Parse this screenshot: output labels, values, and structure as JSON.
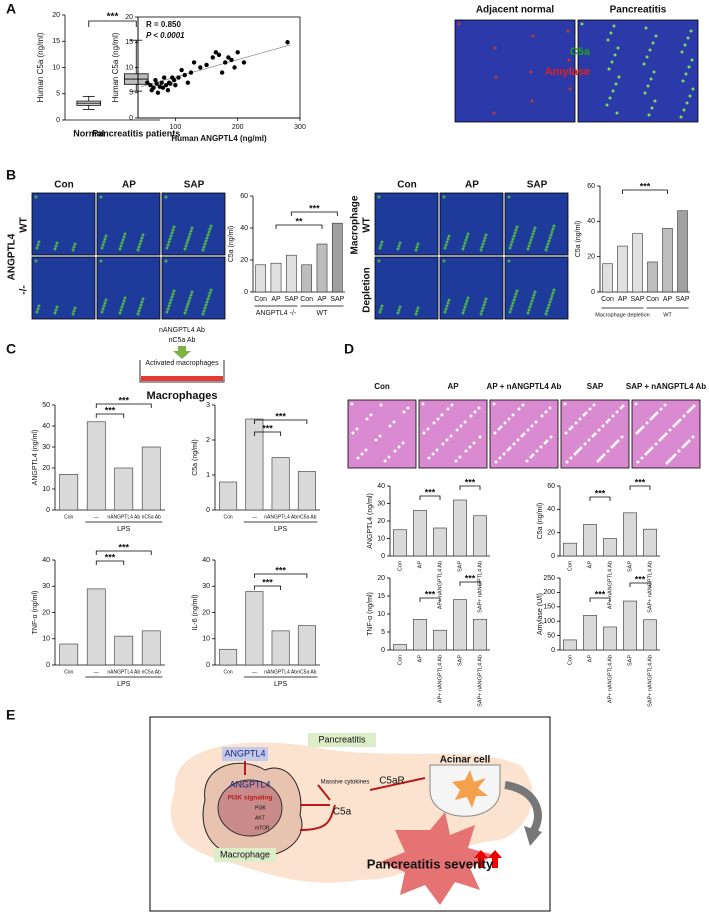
{
  "panels": [
    "A",
    "B",
    "C",
    "D",
    "E"
  ],
  "chart_data": [
    {
      "type": "box",
      "ylabel": "Human C5a (ng/ml)",
      "categories": [
        "Normal",
        "Pancreatitis patients"
      ],
      "boxes": [
        {
          "min": 2,
          "q1": 2.8,
          "median": 3.2,
          "q3": 3.6,
          "max": 4.5
        },
        {
          "min": 5.5,
          "q1": 6.8,
          "median": 7.8,
          "q3": 8.8,
          "max": 15.2
        }
      ],
      "ylim": [
        0,
        20
      ],
      "yticks": [
        0,
        5,
        10,
        15,
        20
      ],
      "significance": [
        "***"
      ]
    },
    {
      "type": "scatter",
      "xlabel": "Human ANGPTL4 (ng/ml)",
      "ylabel": "Human C5a (ng/ml)",
      "annotations": [
        "R = 0.850",
        "P < 0.0001"
      ],
      "x": [
        55,
        60,
        62,
        65,
        68,
        70,
        72,
        75,
        78,
        80,
        82,
        85,
        88,
        90,
        92,
        95,
        98,
        100,
        105,
        110,
        115,
        120,
        125,
        130,
        140,
        150,
        160,
        165,
        170,
        175,
        180,
        185,
        190,
        195,
        200,
        210,
        280
      ],
      "y": [
        7,
        6.5,
        5.5,
        6,
        7.5,
        6.8,
        5,
        6.2,
        7,
        6,
        8,
        6.5,
        5.5,
        7,
        6.8,
        8,
        7.5,
        6.5,
        8,
        9.5,
        8.5,
        7,
        9,
        11,
        10,
        10.5,
        12,
        13,
        12.5,
        9,
        11,
        12,
        11.5,
        10,
        13,
        11,
        15
      ],
      "trend": {
        "x": [
          45,
          285
        ],
        "y": [
          6.2,
          14.5
        ]
      },
      "xlim": [
        40,
        300
      ],
      "xticks": [
        100,
        200,
        300
      ],
      "ylim": [
        0,
        20
      ],
      "yticks": [
        0,
        5,
        10,
        15,
        20
      ],
      "color": "#000000"
    },
    {
      "type": "bar",
      "ylabel": "C5a (ng/ml)",
      "categories": [
        "Con",
        "AP",
        "SAP",
        "Con",
        "AP",
        "SAP"
      ],
      "values": [
        17,
        18,
        23,
        17,
        30,
        43
      ],
      "colors": [
        "#e0e0e0",
        "#e0e0e0",
        "#e0e0e0",
        "#bdbdbd",
        "#bdbdbd",
        "#a0a0a0"
      ],
      "groups": [
        "ANGPTL4 -/-",
        "WT"
      ],
      "significance": [
        "**",
        "***"
      ],
      "ylim": [
        0,
        60
      ],
      "yticks": [
        0,
        20,
        40,
        60
      ]
    },
    {
      "type": "bar",
      "ylabel": "C5a (ng/ml)",
      "categories": [
        "Con",
        "AP",
        "SAP",
        "Con",
        "AP",
        "SAP"
      ],
      "values": [
        16,
        26,
        33,
        17,
        36,
        46
      ],
      "colors": [
        "#e0e0e0",
        "#e0e0e0",
        "#e0e0e0",
        "#bdbdbd",
        "#bdbdbd",
        "#a0a0a0"
      ],
      "groups": [
        "Macrophage depletion",
        "WT"
      ],
      "significance": [
        "***"
      ],
      "ylim": [
        0,
        60
      ],
      "yticks": [
        0,
        20,
        40,
        60
      ]
    },
    {
      "type": "bar",
      "ylabel": "ANGPTL4 (ng/ml)",
      "categories": [
        "Con",
        "—",
        "nANGPTL4 Ab",
        "nC5a Ab"
      ],
      "values": [
        17,
        42,
        20,
        30
      ],
      "color": "#d9d9d9",
      "groups": [
        "LPS"
      ],
      "significance": [
        "***",
        "***"
      ],
      "ylim": [
        0,
        50
      ],
      "yticks": [
        0,
        10,
        20,
        30,
        40,
        50
      ]
    },
    {
      "type": "bar",
      "ylabel": "C5a (ng/ml)",
      "categories": [
        "Con",
        "—",
        "nANGPTL4 Ab",
        "nC5a Ab"
      ],
      "values": [
        0.8,
        2.6,
        1.5,
        1.1
      ],
      "color": "#d9d9d9",
      "groups": [
        "LPS"
      ],
      "significance": [
        "***",
        "***"
      ],
      "ylim": [
        0,
        3
      ],
      "yticks": [
        0,
        1,
        2,
        3
      ]
    },
    {
      "type": "bar",
      "ylabel": "TNF-α (ng/ml)",
      "categories": [
        "Con",
        "—",
        "nANGPTL4 Ab",
        "nC5a Ab"
      ],
      "values": [
        8,
        29,
        11,
        13
      ],
      "color": "#d9d9d9",
      "groups": [
        "LPS"
      ],
      "significance": [
        "***",
        "***"
      ],
      "ylim": [
        0,
        40
      ],
      "yticks": [
        0,
        10,
        20,
        30,
        40
      ]
    },
    {
      "type": "bar",
      "ylabel": "IL-6 (ng/ml)",
      "categories": [
        "Con",
        "—",
        "nANGPTL4 Ab",
        "nC5a Ab"
      ],
      "values": [
        6,
        28,
        13,
        15
      ],
      "color": "#d9d9d9",
      "groups": [
        "LPS"
      ],
      "significance": [
        "***",
        "***"
      ],
      "ylim": [
        0,
        40
      ],
      "yticks": [
        0,
        10,
        20,
        30,
        40
      ]
    },
    {
      "type": "bar",
      "ylabel": "ANGPTL4 (ng/ml)",
      "categories": [
        "Con",
        "AP",
        "AP+ nANGPTL4 Ab",
        "SAP",
        "SAP+ nANGPTL4 Ab"
      ],
      "values": [
        15,
        26,
        16,
        32,
        23
      ],
      "color": "#d9d9d9",
      "significance": [
        "***",
        "***"
      ],
      "ylim": [
        0,
        40
      ],
      "yticks": [
        0,
        10,
        20,
        30,
        40
      ]
    },
    {
      "type": "bar",
      "ylabel": "C5a (ng/ml)",
      "categories": [
        "Con",
        "AP",
        "AP+ nANGPTL4 Ab",
        "SAP",
        "SAP+ nANGPTL4 Ab"
      ],
      "values": [
        11,
        27,
        15,
        37,
        23
      ],
      "color": "#d9d9d9",
      "significance": [
        "***",
        "***"
      ],
      "ylim": [
        0,
        60
      ],
      "yticks": [
        0,
        20,
        40,
        60
      ]
    },
    {
      "type": "bar",
      "ylabel": "TNF-α (ng/ml)",
      "categories": [
        "Con",
        "AP",
        "AP+ nANGPTL4 Ab",
        "SAP",
        "SAP+ nANGPTL4 Ab"
      ],
      "values": [
        1.5,
        8.5,
        5.5,
        14,
        8.5
      ],
      "color": "#d9d9d9",
      "significance": [
        "***",
        "***"
      ],
      "ylim": [
        0,
        20
      ],
      "yticks": [
        0,
        5,
        10,
        15,
        20
      ]
    },
    {
      "type": "bar",
      "ylabel": "Amylase  (U/l)",
      "categories": [
        "Con",
        "AP",
        "AP+ nANGPTL4 Ab",
        "SAP",
        "SAP+ nANGPTL4 Ab"
      ],
      "values": [
        35,
        120,
        80,
        170,
        105
      ],
      "color": "#d9d9d9",
      "significance": [
        "***",
        "***"
      ],
      "ylim": [
        0,
        250
      ],
      "yticks": [
        0,
        50,
        100,
        150,
        200,
        250
      ]
    }
  ],
  "images": {
    "A": {
      "columns": [
        "Adjacent normal",
        "Pancreatitis"
      ],
      "stains": [
        "C5a",
        "Amylase"
      ]
    },
    "B1": {
      "columns": [
        "Con",
        "AP",
        "SAP"
      ],
      "rows": [
        "WT",
        "-/-"
      ],
      "label": "ANGPTL4"
    },
    "B2": {
      "columns": [
        "Con",
        "AP",
        "SAP"
      ],
      "rows": [
        "WT",
        "Depletion"
      ],
      "label": "Macrophage"
    },
    "D": {
      "columns": [
        "Con",
        "AP",
        "AP + nANGPTL4 Ab",
        "SAP",
        "SAP + nANGPTL4 Ab"
      ]
    }
  },
  "schematic_c": {
    "treatments": [
      "nANGPTL4 Ab",
      "nC5a Ab"
    ],
    "cells": "Activated macrophages",
    "title": "Macrophages"
  },
  "diagram": {
    "angptl4_top": "ANGPTL4",
    "angptl4_cell": "ANGPTL4",
    "pathway": "PI3K signaling",
    "pi3k": "PI3K",
    "akt": "AKT",
    "mtor": "mTOR",
    "macrophage": "Macrophage",
    "pancreatitis": "Pancreatitis",
    "cytokines": "Massive cytokines",
    "c5a": "C5a",
    "c5ar": "C5aR",
    "acinar": "Acinar cell",
    "severity": "Pancreatitis severity"
  }
}
